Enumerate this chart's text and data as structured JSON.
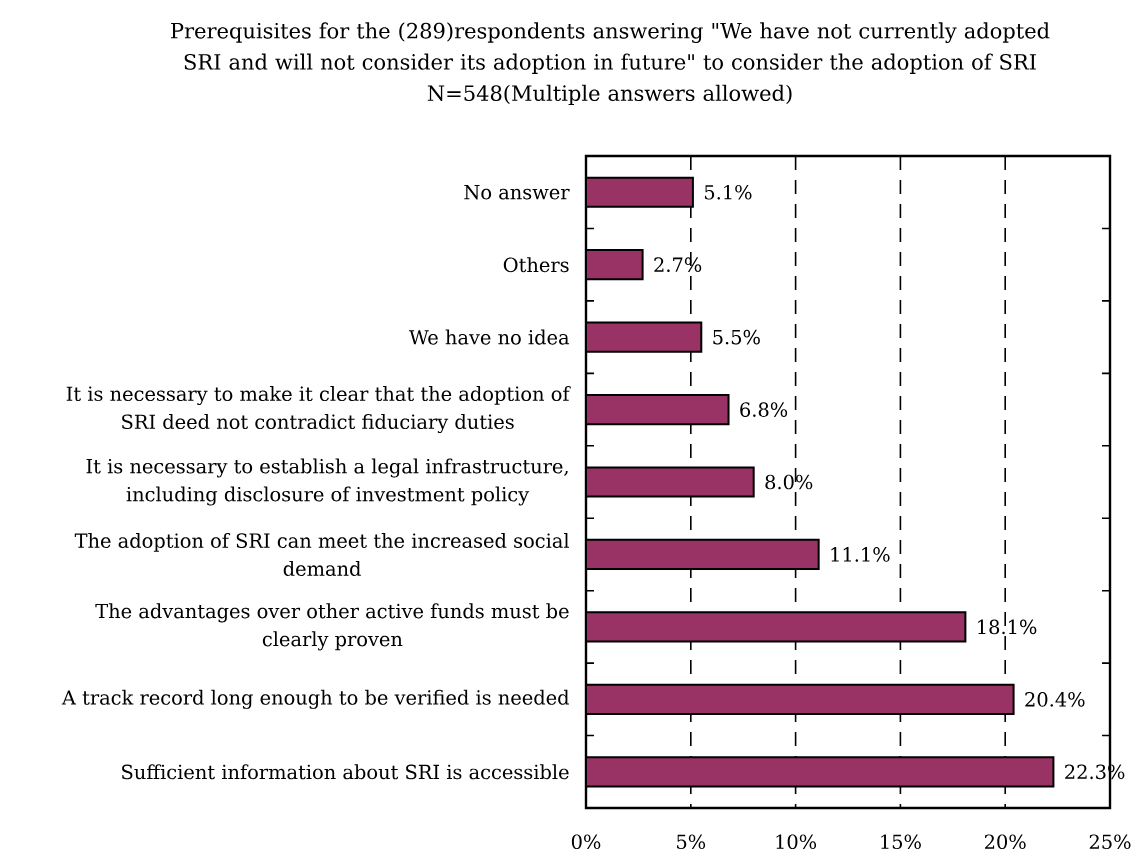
{
  "chart_data": {
    "type": "bar",
    "orientation": "horizontal",
    "title": "Prerequisites for the (289)respondents answering \"We have not currently adopted SRI and will not consider its adoption in future\" to consider the adoption of SRI",
    "subtitle": "N=548(Multiple answers allowed)",
    "categories": [
      "No answer",
      "Others",
      "We have no idea",
      "It is necessary to make it clear that the adoption of SRI deed not contradict fiduciary duties",
      "It is necessary to establish a legal infrastructure, including disclosure of investment policy",
      "The adoption of SRI can meet the increased social demand",
      "The advantages over other active funds must be clearly proven",
      "A track record long enough to be verified is needed",
      "Sufficient information about SRI is accessible"
    ],
    "values": [
      5.1,
      2.7,
      5.5,
      6.8,
      8.0,
      11.1,
      18.1,
      20.4,
      22.3
    ],
    "value_labels": [
      "5.1%",
      "2.7%",
      "5.5%",
      "6.8%",
      "8.0%",
      "11.1%",
      "18.1%",
      "20.4%",
      "22.3%"
    ],
    "color": "#993366",
    "xlim": [
      0,
      25
    ],
    "xticks": [
      {
        "value": 0,
        "label": "0%"
      },
      {
        "value": 5,
        "label": "5%"
      },
      {
        "value": 10,
        "label": "10%"
      },
      {
        "value": 15,
        "label": "15%"
      },
      {
        "value": 20,
        "label": "20%"
      },
      {
        "value": 25,
        "label": "25%"
      }
    ],
    "grid": "x"
  }
}
